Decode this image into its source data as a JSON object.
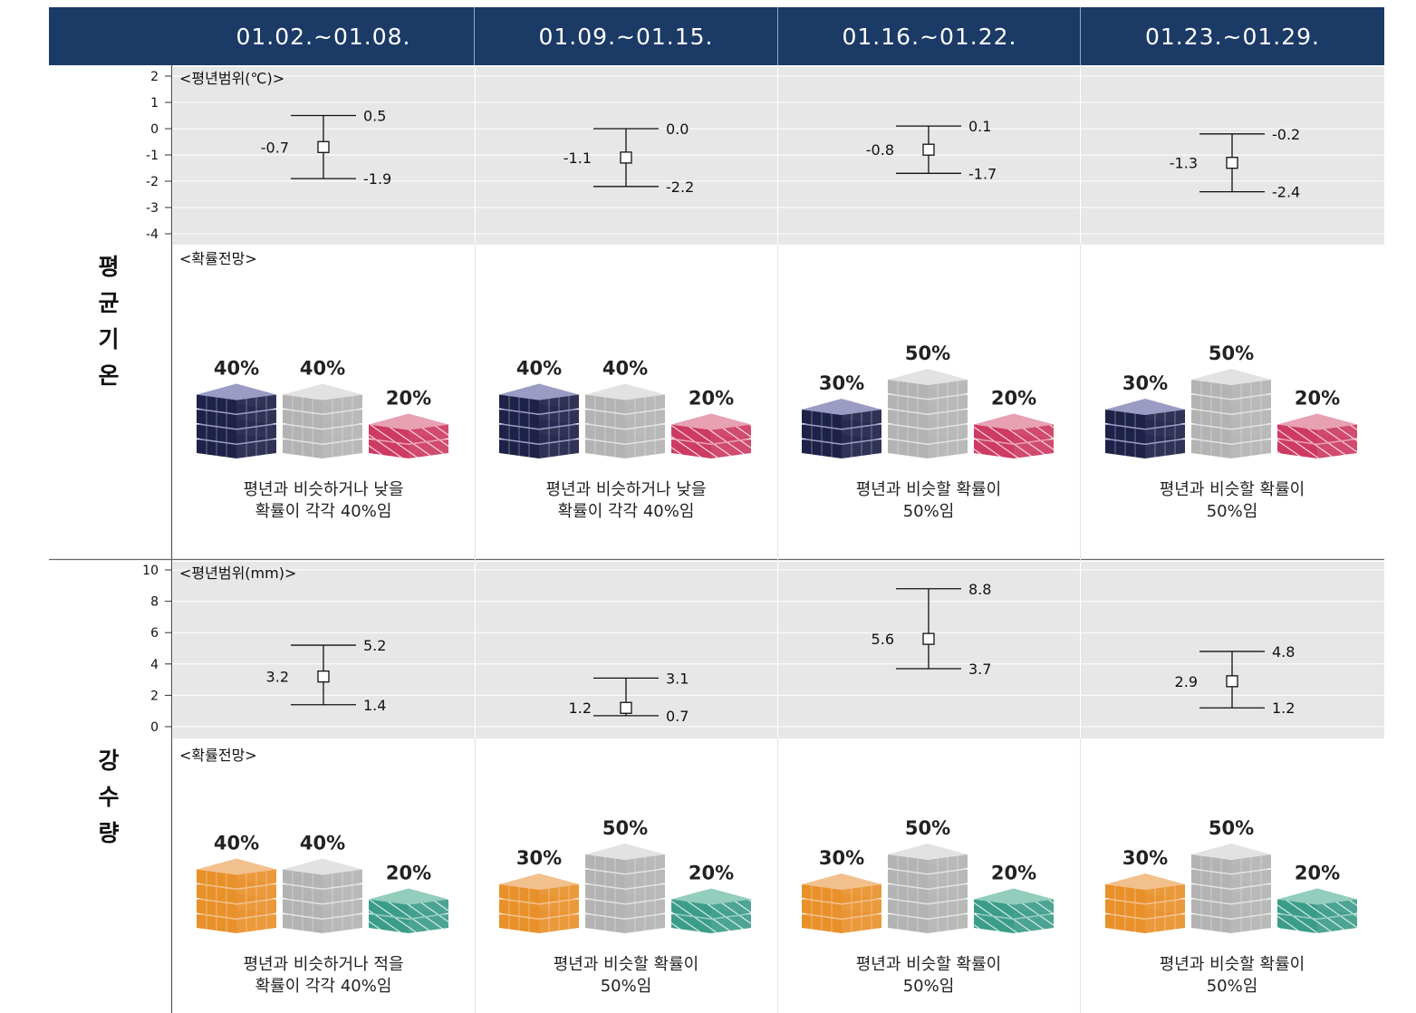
{
  "header": {
    "periods": [
      "01.02.~01.08.",
      "01.09.~01.15.",
      "01.16.~01.22.",
      "01.23.~01.29."
    ]
  },
  "temperature": {
    "section_label": "평균기온",
    "range_label": "<평년범위(℃)>",
    "prob_label": "<확률전망>"
  },
  "precipitation": {
    "section_label": "강수량",
    "range_label": "<평년범위(mm)>",
    "prob_label": "<확률전망>"
  },
  "colors": {
    "header_bg": "#1b3a66",
    "panel_bg": "#e7e7e7",
    "temp_below": "#1e2148",
    "temp_below_top": "#9a9cc4",
    "normal": "#b3b3b3",
    "normal_top": "#e2e2e2",
    "temp_above": "#cd3a63",
    "temp_above_top": "#e8a0b3",
    "precip_below": "#e8902a",
    "precip_below_top": "#f2c08c",
    "precip_above": "#3c9c8a",
    "precip_above_top": "#92cdbd"
  },
  "chart_data": [
    {
      "type": "errorbar",
      "ylim": [
        -4,
        2
      ],
      "yticks": [
        2,
        1,
        0,
        -1,
        -2,
        -3,
        -4
      ],
      "categories": [
        "01.02.~01.08.",
        "01.09.~01.15.",
        "01.16.~01.22.",
        "01.23.~01.29."
      ],
      "mid": [
        -0.7,
        -1.1,
        -0.8,
        -1.3
      ],
      "high": [
        0.5,
        0.0,
        0.1,
        -0.2
      ],
      "low": [
        -1.9,
        -2.2,
        -1.7,
        -2.4
      ],
      "mid_labels": [
        "-0.7",
        "-1.1",
        "-0.8",
        "-1.3"
      ],
      "high_labels": [
        "0.5",
        "0.0",
        "0.1",
        "-0.2"
      ],
      "low_labels": [
        "-1.9",
        "-2.2",
        "-1.7",
        "-2.4"
      ],
      "probabilities": [
        {
          "below": 40,
          "normal": 40,
          "above": 20,
          "below_label": "40%",
          "normal_label": "40%",
          "above_label": "20%",
          "text": [
            "평년과 비슷하거나 낮을",
            "확률이 각각 40%임"
          ]
        },
        {
          "below": 40,
          "normal": 40,
          "above": 20,
          "below_label": "40%",
          "normal_label": "40%",
          "above_label": "20%",
          "text": [
            "평년과 비슷하거나 낮을",
            "확률이 각각 40%임"
          ]
        },
        {
          "below": 30,
          "normal": 50,
          "above": 20,
          "below_label": "30%",
          "normal_label": "50%",
          "above_label": "20%",
          "text": [
            "평년과 비슷할 확률이",
            "50%임"
          ]
        },
        {
          "below": 30,
          "normal": 50,
          "above": 20,
          "below_label": "30%",
          "normal_label": "50%",
          "above_label": "20%",
          "text": [
            "평년과 비슷할 확률이",
            "50%임"
          ]
        }
      ]
    },
    {
      "type": "errorbar",
      "ylim": [
        0,
        10
      ],
      "yticks": [
        10,
        8,
        6,
        4,
        2,
        0
      ],
      "categories": [
        "01.02.~01.08.",
        "01.09.~01.15.",
        "01.16.~01.22.",
        "01.23.~01.29."
      ],
      "mid": [
        3.2,
        1.2,
        5.6,
        2.9
      ],
      "high": [
        5.2,
        3.1,
        8.8,
        4.8
      ],
      "low": [
        1.4,
        0.7,
        3.7,
        1.2
      ],
      "mid_labels": [
        "3.2",
        "1.2",
        "5.6",
        "2.9"
      ],
      "high_labels": [
        "5.2",
        "3.1",
        "8.8",
        "4.8"
      ],
      "low_labels": [
        "1.4",
        "0.7",
        "3.7",
        "1.2"
      ],
      "probabilities": [
        {
          "below": 40,
          "normal": 40,
          "above": 20,
          "below_label": "40%",
          "normal_label": "40%",
          "above_label": "20%",
          "text": [
            "평년과 비슷하거나 적을",
            "확률이 각각 40%임"
          ]
        },
        {
          "below": 30,
          "normal": 50,
          "above": 20,
          "below_label": "30%",
          "normal_label": "50%",
          "above_label": "20%",
          "text": [
            "평년과 비슷할 확률이",
            "50%임"
          ]
        },
        {
          "below": 30,
          "normal": 50,
          "above": 20,
          "below_label": "30%",
          "normal_label": "50%",
          "above_label": "20%",
          "text": [
            "평년과 비슷할 확률이",
            "50%임"
          ]
        },
        {
          "below": 30,
          "normal": 50,
          "above": 20,
          "below_label": "30%",
          "normal_label": "50%",
          "above_label": "20%",
          "text": [
            "평년과 비슷할 확률이",
            "50%임"
          ]
        }
      ]
    }
  ]
}
